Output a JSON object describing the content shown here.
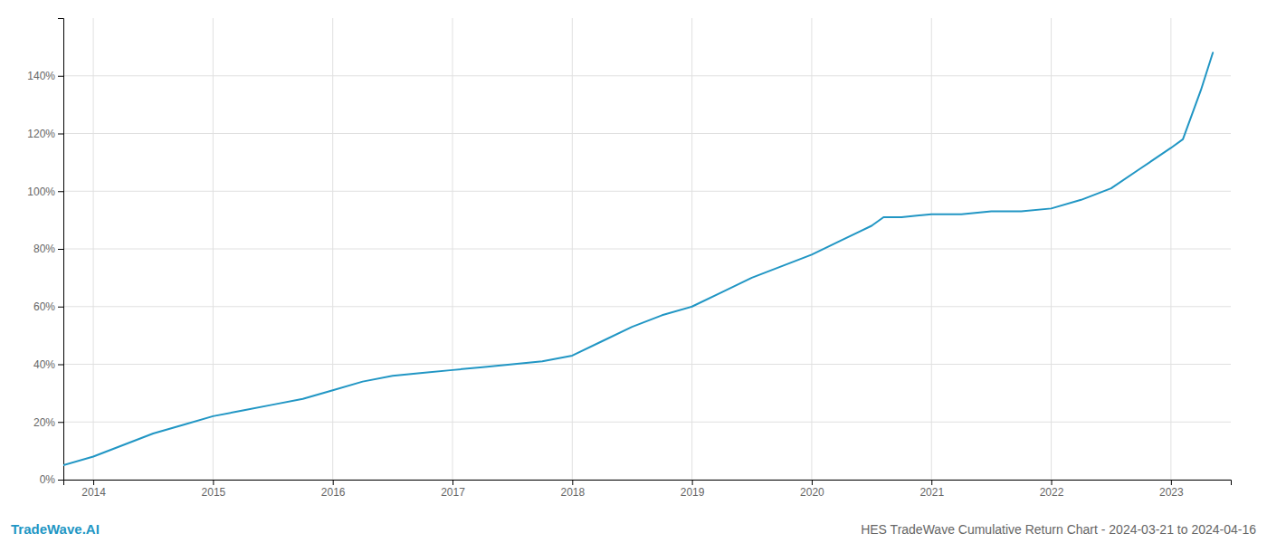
{
  "chart_data": {
    "type": "line",
    "title": "HES TradeWave Cumulative Return Chart - 2024-03-21 to 2024-04-16",
    "annotations": [
      "TradeWave.AI"
    ],
    "x": [
      2013.75,
      2014.0,
      2014.25,
      2014.5,
      2014.75,
      2015.0,
      2015.25,
      2015.5,
      2015.75,
      2016.0,
      2016.25,
      2016.5,
      2016.75,
      2017.0,
      2017.25,
      2017.5,
      2017.75,
      2018.0,
      2018.25,
      2018.5,
      2018.75,
      2019.0,
      2019.25,
      2019.5,
      2019.75,
      2020.0,
      2020.25,
      2020.5,
      2020.6,
      2020.75,
      2021.0,
      2021.25,
      2021.5,
      2021.75,
      2022.0,
      2022.25,
      2022.5,
      2022.75,
      2023.0,
      2023.1,
      2023.25,
      2023.35
    ],
    "values": [
      5,
      8,
      12,
      16,
      19,
      22,
      24,
      26,
      28,
      31,
      34,
      36,
      37,
      38,
      39,
      40,
      41,
      43,
      48,
      53,
      57,
      60,
      65,
      70,
      74,
      78,
      83,
      88,
      91,
      91,
      92,
      92,
      93,
      93,
      94,
      97,
      101,
      108,
      115,
      118,
      135,
      148
    ],
    "color": "#2196c4",
    "xlim": [
      2013.75,
      2023.5
    ],
    "xticks": [
      2014,
      2015,
      2016,
      2017,
      2018,
      2019,
      2020,
      2021,
      2022,
      2023
    ],
    "ylim": [
      0,
      160
    ],
    "yticks": [
      {
        "value": 0,
        "label": "0%"
      },
      {
        "value": 20,
        "label": "20%"
      },
      {
        "value": 40,
        "label": "40%"
      },
      {
        "value": 60,
        "label": "60%"
      },
      {
        "value": 80,
        "label": "80%"
      },
      {
        "value": 100,
        "label": "100%"
      },
      {
        "value": 120,
        "label": "120%"
      },
      {
        "value": 140,
        "label": "140%"
      }
    ],
    "grid": true
  }
}
